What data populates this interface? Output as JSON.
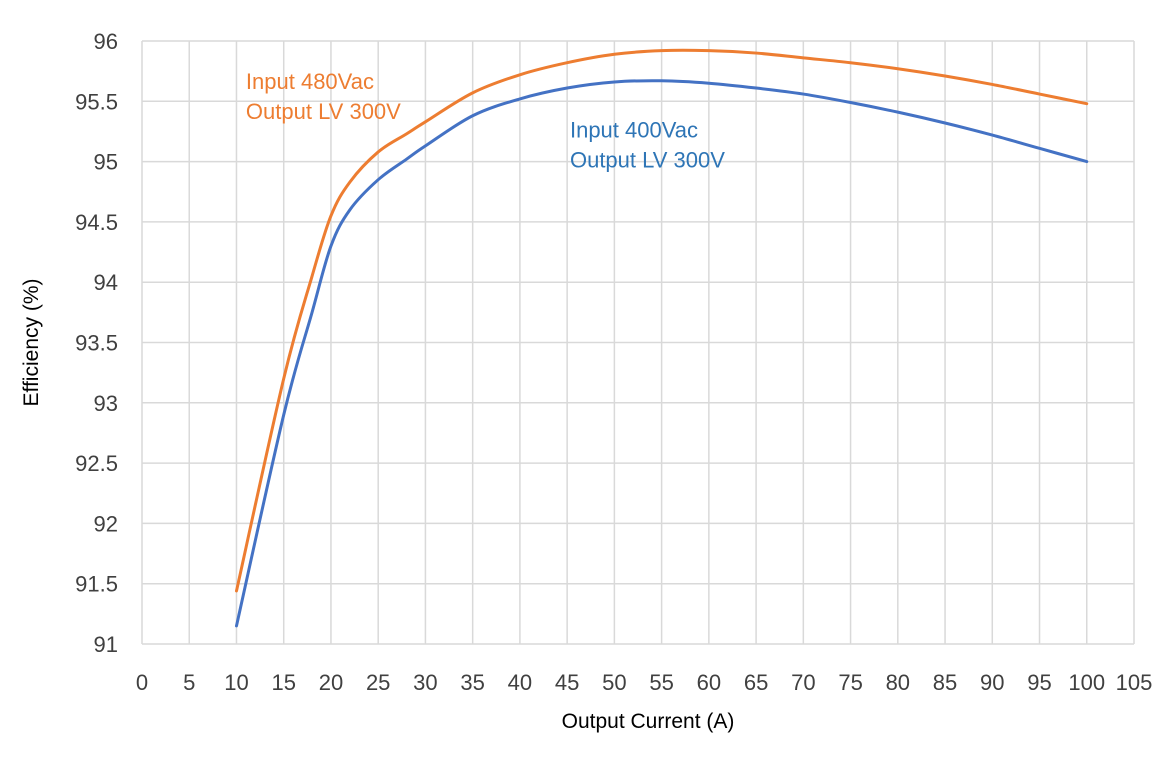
{
  "chart_data": {
    "type": "line",
    "title": "",
    "xlabel": "Output Current (A)",
    "ylabel": "Efficiency (%)",
    "xlim": [
      0,
      105
    ],
    "ylim": [
      91,
      96
    ],
    "xticks": [
      0,
      5,
      10,
      15,
      20,
      25,
      30,
      35,
      40,
      45,
      50,
      55,
      60,
      65,
      70,
      75,
      80,
      85,
      90,
      95,
      100,
      105
    ],
    "xtick_labels": [
      "0",
      "5",
      "10",
      "15",
      "20",
      "25",
      "30",
      "35",
      "40",
      "45",
      "50",
      "55",
      "60",
      "65",
      "70",
      "75",
      "80",
      "85",
      "90",
      "95",
      "100",
      "105"
    ],
    "yticks": [
      91,
      91.5,
      92,
      92.5,
      93,
      93.5,
      94,
      94.5,
      95,
      95.5,
      96
    ],
    "ytick_labels": [
      "91",
      "91.5",
      "92",
      "92.5",
      "93",
      "93.5",
      "94",
      "94.5",
      "95",
      "95.5",
      "96"
    ],
    "grid": true,
    "legend": "none",
    "series": [
      {
        "color": "#ED7D31",
        "x": [
          10,
          15,
          18,
          20,
          22,
          25,
          28,
          30,
          35,
          40,
          45,
          50,
          55,
          60,
          65,
          70,
          75,
          80,
          85,
          90,
          95,
          100
        ],
        "values": [
          91.44,
          93.2,
          94.05,
          94.55,
          94.83,
          95.08,
          95.23,
          95.33,
          95.57,
          95.72,
          95.82,
          95.89,
          95.92,
          95.92,
          95.9,
          95.86,
          95.82,
          95.77,
          95.71,
          95.64,
          95.56,
          95.48
        ]
      },
      {
        "color": "#4472C4",
        "x": [
          10,
          15,
          18,
          20,
          22,
          25,
          28,
          30,
          35,
          40,
          45,
          50,
          55,
          60,
          65,
          70,
          75,
          80,
          85,
          90,
          95,
          100
        ],
        "values": [
          91.15,
          92.9,
          93.75,
          94.3,
          94.6,
          94.85,
          95.02,
          95.13,
          95.38,
          95.52,
          95.61,
          95.66,
          95.67,
          95.65,
          95.61,
          95.56,
          95.49,
          95.41,
          95.32,
          95.22,
          95.11,
          95.0
        ]
      }
    ],
    "annotations": [
      {
        "lines": [
          "Input 480Vac",
          "Output LV 300V"
        ],
        "color": "#ED7D31",
        "x": 11,
        "y": 95.6
      },
      {
        "lines": [
          "Input 400Vac",
          "Output LV 300V"
        ],
        "color": "#2E75B6",
        "x": 45.3,
        "y": 95.2
      }
    ]
  }
}
